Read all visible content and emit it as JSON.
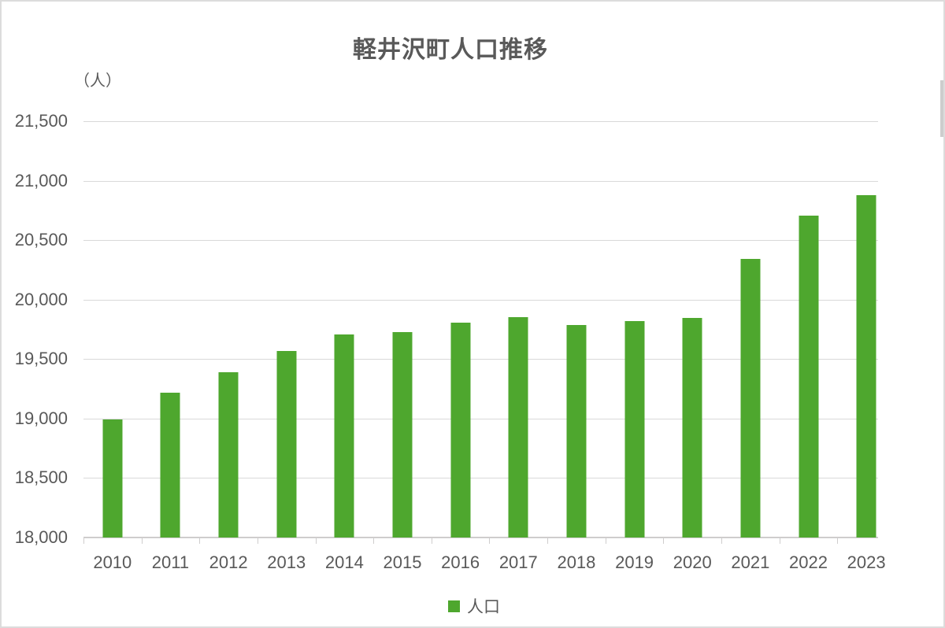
{
  "page": {
    "title": "軽井沢町人口推移",
    "unit_label": "（人）",
    "legend_label": "人口"
  },
  "colors": {
    "bar": "#4ea72e",
    "grid": "#d9d9d9",
    "axis_line": "#cfcdcd",
    "text": "#595959",
    "frame_border": "#dcdcdc",
    "scrollbar_thumb": "#cdcdcd"
  },
  "chart_data": {
    "type": "bar",
    "title": "軽井沢町人口推移",
    "unit": "（人）",
    "categories": [
      "2010",
      "2011",
      "2012",
      "2013",
      "2014",
      "2015",
      "2016",
      "2017",
      "2018",
      "2019",
      "2020",
      "2021",
      "2022",
      "2023"
    ],
    "series": [
      {
        "name": "人口",
        "values": [
          18990,
          19215,
          19390,
          19565,
          19710,
          19725,
          19805,
          19855,
          19785,
          19820,
          19845,
          20345,
          20705,
          20875
        ]
      }
    ],
    "ylim": [
      18000,
      21500
    ],
    "ytick_step": 500,
    "ytick_labels": [
      "18,000",
      "18,500",
      "19,000",
      "19,500",
      "20,000",
      "20,500",
      "21,000",
      "21,500"
    ],
    "xlabel": "",
    "ylabel": "（人）",
    "grid": true,
    "legend_position": "bottom"
  }
}
